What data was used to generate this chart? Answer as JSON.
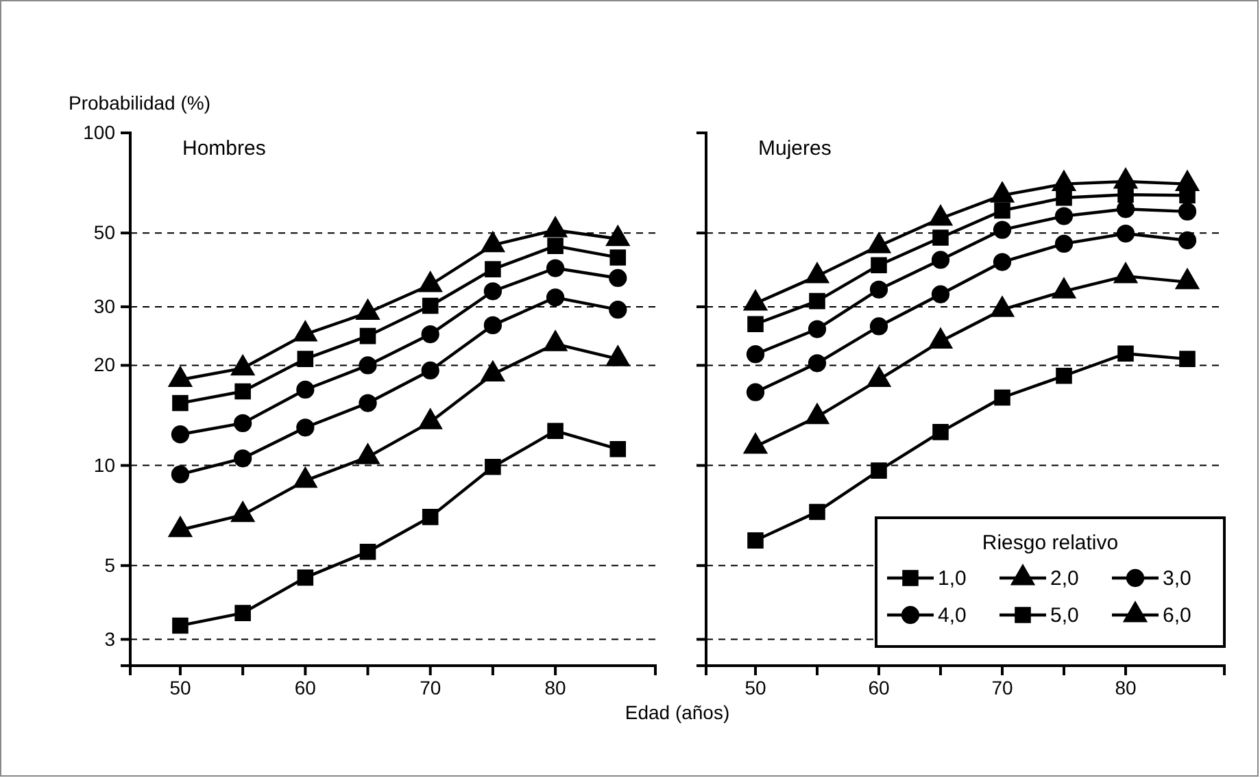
{
  "chart_data": [
    {
      "type": "line",
      "title": "Hombres",
      "ylabel": "Probabilidad (%)",
      "xlabel": "Edad (años)",
      "log": "y",
      "grid": "y",
      "legend": false,
      "line_style": "solid",
      "x": [
        50,
        55,
        60,
        65,
        70,
        75,
        80,
        85
      ],
      "xlim": [
        46,
        88
      ],
      "xticks": [
        50,
        {
          "value": 55,
          "label": null
        },
        60,
        {
          "value": 65,
          "label": null
        },
        70,
        {
          "value": 75,
          "label": null
        },
        80
      ],
      "ylim": [
        2.5,
        100
      ],
      "yticks": [
        3,
        5,
        10,
        20,
        30,
        50,
        100
      ],
      "series": [
        {
          "color": "#000000",
          "marker": "square",
          "values": [
            3.3,
            3.6,
            4.6,
            5.5,
            7.0,
            9.9,
            12.7,
            11.2
          ]
        },
        {
          "color": "#000000",
          "marker": "triangle",
          "values": [
            6.4,
            7.1,
            9.0,
            10.6,
            13.5,
            18.8,
            23.2,
            20.9
          ]
        },
        {
          "color": "#000000",
          "marker": "circle",
          "values": [
            9.4,
            10.5,
            13.0,
            15.4,
            19.3,
            26.4,
            32.0,
            29.4
          ]
        },
        {
          "color": "#000000",
          "marker": "circle",
          "values": [
            12.4,
            13.4,
            16.9,
            20.0,
            24.8,
            33.4,
            39.2,
            36.6
          ]
        },
        {
          "color": "#000000",
          "marker": "square",
          "values": [
            15.4,
            16.7,
            20.9,
            24.5,
            30.2,
            38.9,
            45.7,
            42.2
          ]
        },
        {
          "color": "#000000",
          "marker": "triangle",
          "values": [
            18.1,
            19.6,
            24.8,
            28.8,
            34.9,
            46.0,
            51.0,
            48.0
          ]
        }
      ]
    },
    {
      "type": "line",
      "title": "Mujeres",
      "log": "y",
      "grid": "y",
      "legend": "bottom right",
      "legend_title": "Riesgo relativo",
      "line_style": "solid",
      "tick_labels": "x",
      "x": [
        50,
        55,
        60,
        65,
        70,
        75,
        80,
        85
      ],
      "xlim": [
        46,
        88
      ],
      "xticks": [
        50,
        {
          "value": 55,
          "label": null
        },
        60,
        {
          "value": 65,
          "label": null
        },
        70,
        {
          "value": 75,
          "label": null
        },
        80
      ],
      "ylim": [
        2.5,
        100
      ],
      "yticks": [
        3,
        5,
        10,
        20,
        30,
        50,
        100
      ],
      "series": [
        {
          "name": "1,0",
          "color": "#000000",
          "marker": "square",
          "values": [
            5.95,
            7.25,
            9.65,
            12.6,
            16.0,
            18.6,
            21.7,
            20.9
          ]
        },
        {
          "name": "2,0",
          "color": "#000000",
          "marker": "triangle",
          "values": [
            11.4,
            14.0,
            18.1,
            23.6,
            29.4,
            33.4,
            37.1,
            35.6
          ]
        },
        {
          "name": "3,0",
          "color": "#000000",
          "marker": "circle",
          "values": [
            16.6,
            20.3,
            26.2,
            32.7,
            40.9,
            46.4,
            49.8,
            47.5
          ]
        },
        {
          "name": "4,0",
          "color": "#000000",
          "marker": "circle",
          "values": [
            21.6,
            25.7,
            33.8,
            41.5,
            51.1,
            56.2,
            59.0,
            58.0
          ]
        },
        {
          "name": "5,0",
          "color": "#000000",
          "marker": "square",
          "values": [
            26.6,
            31.2,
            40.0,
            48.4,
            58.4,
            63.8,
            65.2,
            64.9
          ]
        },
        {
          "name": "6,0",
          "color": "#000000",
          "marker": "triangle",
          "values": [
            30.7,
            37.1,
            45.7,
            55.3,
            64.9,
            70.2,
            71.4,
            70.2
          ]
        }
      ]
    }
  ]
}
